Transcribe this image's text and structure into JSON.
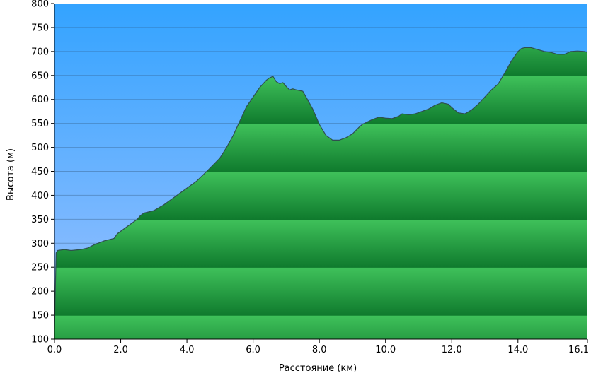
{
  "chart_data": {
    "type": "area",
    "title": "",
    "xlabel": "Расстояние   (км)",
    "ylabel": "Высота (м)",
    "xlim": [
      0,
      16.1
    ],
    "ylim": [
      100,
      800
    ],
    "x_ticks": [
      "0.0",
      "2.0",
      "4.0",
      "6.0",
      "8.0",
      "10.0",
      "12.0",
      "14.0",
      "16.1"
    ],
    "y_ticks": [
      "100",
      "150",
      "200",
      "250",
      "300",
      "350",
      "400",
      "450",
      "500",
      "550",
      "600",
      "650",
      "700",
      "750",
      "800"
    ],
    "grid": true,
    "colors": {
      "sky_top": "#33a3ff",
      "sky_bottom": "#9fc2ff",
      "fill_light": "#3fc15a",
      "fill_dark": "#0f7a2d",
      "outline": "#2f4f4f",
      "gridline": "#2a4a6a"
    },
    "series": [
      {
        "x": [
          0.0,
          0.05,
          0.1,
          0.3,
          0.5,
          0.8,
          1.0,
          1.2,
          1.5,
          1.8,
          1.9,
          2.2,
          2.5,
          2.6,
          2.7,
          3.0,
          3.3,
          3.6,
          3.8,
          4.0,
          4.3,
          4.6,
          5.0,
          5.2,
          5.4,
          5.6,
          5.8,
          6.0,
          6.2,
          6.4,
          6.5,
          6.6,
          6.7,
          6.8,
          6.9,
          7.0,
          7.1,
          7.2,
          7.3,
          7.5,
          7.6,
          7.8,
          8.0,
          8.2,
          8.4,
          8.6,
          8.8,
          9.0,
          9.2,
          9.3,
          9.6,
          9.8,
          10.0,
          10.2,
          10.4,
          10.5,
          10.7,
          10.9,
          11.1,
          11.3,
          11.5,
          11.7,
          11.9,
          12.0,
          12.2,
          12.4,
          12.6,
          12.8,
          13.0,
          13.2,
          13.4,
          13.6,
          13.8,
          14.0,
          14.1,
          14.2,
          14.4,
          14.6,
          14.8,
          15.0,
          15.2,
          15.4,
          15.6,
          15.8,
          16.0,
          16.1
        ],
        "y": [
          120,
          280,
          285,
          287,
          285,
          287,
          290,
          297,
          305,
          310,
          320,
          335,
          350,
          358,
          363,
          368,
          380,
          395,
          405,
          415,
          430,
          450,
          478,
          500,
          525,
          555,
          585,
          605,
          625,
          640,
          645,
          648,
          637,
          633,
          635,
          627,
          620,
          622,
          620,
          617,
          605,
          580,
          548,
          525,
          515,
          515,
          520,
          528,
          542,
          548,
          558,
          563,
          561,
          560,
          565,
          570,
          568,
          570,
          575,
          580,
          588,
          593,
          590,
          583,
          572,
          570,
          578,
          590,
          605,
          620,
          632,
          655,
          680,
          700,
          706,
          708,
          708,
          704,
          700,
          698,
          694,
          694,
          700,
          701,
          700,
          698
        ]
      }
    ]
  }
}
